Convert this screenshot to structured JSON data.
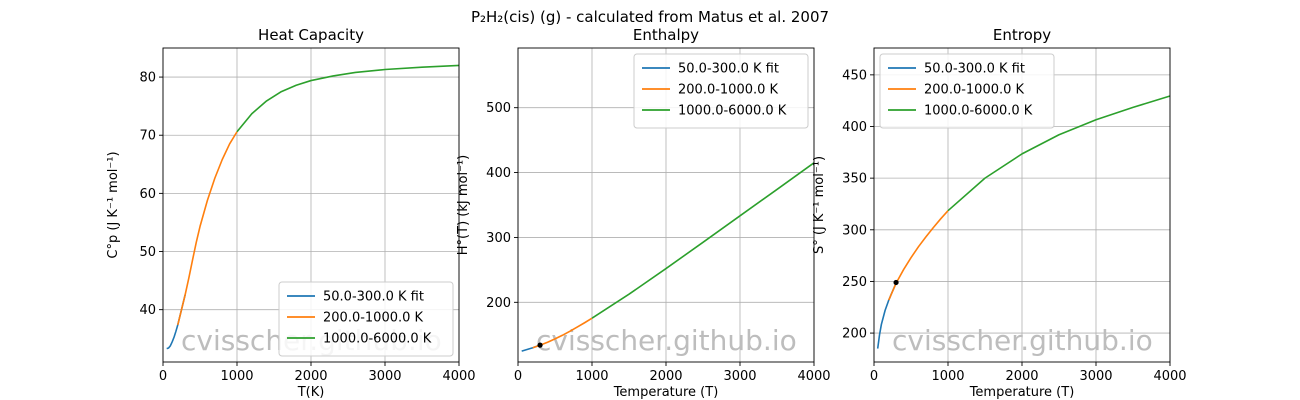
{
  "figure": {
    "suptitle": "P₂H₂(cis) (g) - calculated from Matus et al. 2007",
    "watermark": "cvisscher.github.io"
  },
  "colors": {
    "series": [
      "#1f77b4",
      "#ff7f0e",
      "#2ca02c"
    ],
    "grid": "#b0b0b0",
    "marker": "#000000"
  },
  "chart_data": [
    {
      "type": "line",
      "title": "Heat Capacity",
      "xlabel": "T(K)",
      "ylabel": "C°p (J K⁻¹ mol⁻¹)",
      "xlim": [
        0,
        4000
      ],
      "ylim": [
        31,
        85
      ],
      "xticks": [
        0,
        1000,
        2000,
        3000,
        4000
      ],
      "yticks": [
        40,
        50,
        60,
        70,
        80
      ],
      "grid": true,
      "legend_position": "lower-right",
      "series": [
        {
          "name": "50.0-300.0 K fit",
          "x": [
            50,
            75,
            100,
            125,
            150,
            175,
            200,
            225,
            250,
            275,
            300
          ],
          "y": [
            33.3,
            33.4,
            33.8,
            34.5,
            35.3,
            36.3,
            37.4,
            38.7,
            40.0,
            41.3,
            42.6
          ]
        },
        {
          "name": "200.0-1000.0 K",
          "x": [
            200,
            250,
            300,
            350,
            400,
            450,
            500,
            600,
            700,
            800,
            900,
            1000
          ],
          "y": [
            37.4,
            40.0,
            42.6,
            45.5,
            48.6,
            51.6,
            54.3,
            58.8,
            62.6,
            65.8,
            68.5,
            70.6
          ]
        },
        {
          "name": "1000.0-6000.0 K",
          "x": [
            1000,
            1200,
            1400,
            1600,
            1800,
            2000,
            2300,
            2600,
            3000,
            3500,
            4000
          ],
          "y": [
            70.6,
            73.7,
            75.9,
            77.5,
            78.6,
            79.4,
            80.2,
            80.8,
            81.3,
            81.7,
            82.0
          ]
        }
      ],
      "markers": []
    },
    {
      "type": "line",
      "title": "Enthalpy",
      "xlabel": "Temperature (T)",
      "ylabel": "H°(T) (kJ mol⁻¹)",
      "xlim": [
        0,
        4000
      ],
      "ylim": [
        108,
        592
      ],
      "xticks": [
        0,
        1000,
        2000,
        3000,
        4000
      ],
      "yticks": [
        200,
        300,
        400,
        500
      ],
      "grid": true,
      "legend_position": "upper-right",
      "series": [
        {
          "name": "50.0-300.0 K fit",
          "x": [
            50,
            100,
            150,
            200,
            250,
            300
          ],
          "y": [
            124.8,
            126.5,
            128.2,
            130.0,
            132.0,
            134.0
          ]
        },
        {
          "name": "200.0-1000.0 K",
          "x": [
            200,
            300,
            400,
            500,
            600,
            700,
            800,
            900,
            1000
          ],
          "y": [
            130.0,
            134.0,
            138.5,
            143.6,
            149.2,
            155.3,
            161.8,
            168.5,
            175.5
          ]
        },
        {
          "name": "1000.0-6000.0 K",
          "x": [
            1000,
            1500,
            2000,
            2500,
            3000,
            3500,
            4000
          ],
          "y": [
            175.5,
            212.5,
            252.0,
            292.5,
            333.3,
            374.0,
            415.0
          ]
        }
      ],
      "markers": [
        {
          "x": 298.15,
          "y": 134.0
        }
      ]
    },
    {
      "type": "line",
      "title": "Entropy",
      "xlabel": "Temperature (T)",
      "ylabel": "S° (J K⁻¹ mol⁻¹)",
      "xlim": [
        0,
        4000
      ],
      "ylim": [
        172,
        476
      ],
      "xticks": [
        0,
        1000,
        2000,
        3000,
        4000
      ],
      "yticks": [
        200,
        250,
        300,
        350,
        400,
        450
      ],
      "grid": true,
      "legend_position": "upper-left",
      "series": [
        {
          "name": "50.0-300.0 K fit",
          "x": [
            50,
            75,
            100,
            150,
            200,
            250,
            300
          ],
          "y": [
            185.0,
            198.5,
            208.5,
            222.0,
            232.0,
            240.5,
            248.5
          ]
        },
        {
          "name": "200.0-1000.0 K",
          "x": [
            200,
            300,
            400,
            500,
            600,
            700,
            800,
            900,
            1000
          ],
          "y": [
            232.0,
            248.5,
            261.5,
            273.0,
            283.5,
            293.0,
            302.0,
            310.5,
            318.5
          ]
        },
        {
          "name": "1000.0-6000.0 K",
          "x": [
            1000,
            1500,
            2000,
            2500,
            3000,
            3500,
            4000
          ],
          "y": [
            318.5,
            350.0,
            373.5,
            392.0,
            406.5,
            418.5,
            429.5
          ]
        }
      ],
      "markers": [
        {
          "x": 298.15,
          "y": 249.0
        }
      ]
    }
  ]
}
